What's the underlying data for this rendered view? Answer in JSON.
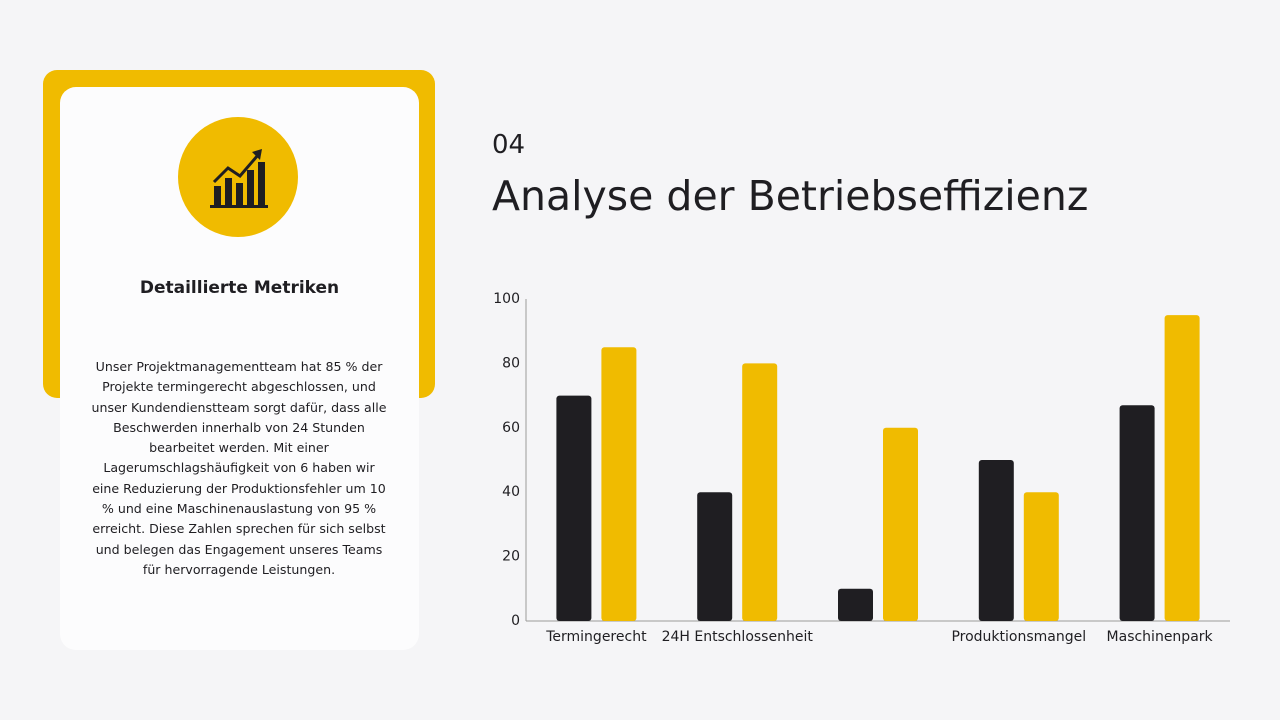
{
  "header": {
    "number": "04",
    "title": "Analyse der Betriebseffizienz"
  },
  "card": {
    "heading": "Detaillierte Metriken",
    "text": "Unser Projektmanagementteam hat 85 % der Projekte termingerecht abgeschlossen, und unser Kundendienstteam sorgt dafür, dass alle Beschwerden innerhalb von 24 Stunden bearbeitet werden. Mit einer Lagerumschlagshäufigkeit von 6 haben wir eine Reduzierung der Produktionsfehler um 10 % und eine Maschinenauslastung von 95 % erreicht. Diese Zahlen sprechen für sich selbst und belegen das Engagement unseres Teams für hervorragende Leistungen."
  },
  "chart_data": {
    "type": "bar",
    "categories": [
      "Termingerecht",
      "24H Entschlossenheit",
      null,
      "Produktionsmangel",
      "Maschinenpark"
    ],
    "series": [
      {
        "color": "#1f1e22",
        "values": [
          70,
          40,
          10,
          50,
          67
        ]
      },
      {
        "color": "#f0bb00",
        "values": [
          85,
          80,
          60,
          40,
          95
        ]
      }
    ],
    "ylim": [
      0,
      100
    ],
    "yticks": [
      0,
      20,
      40,
      60,
      80,
      100
    ],
    "grid": false
  }
}
